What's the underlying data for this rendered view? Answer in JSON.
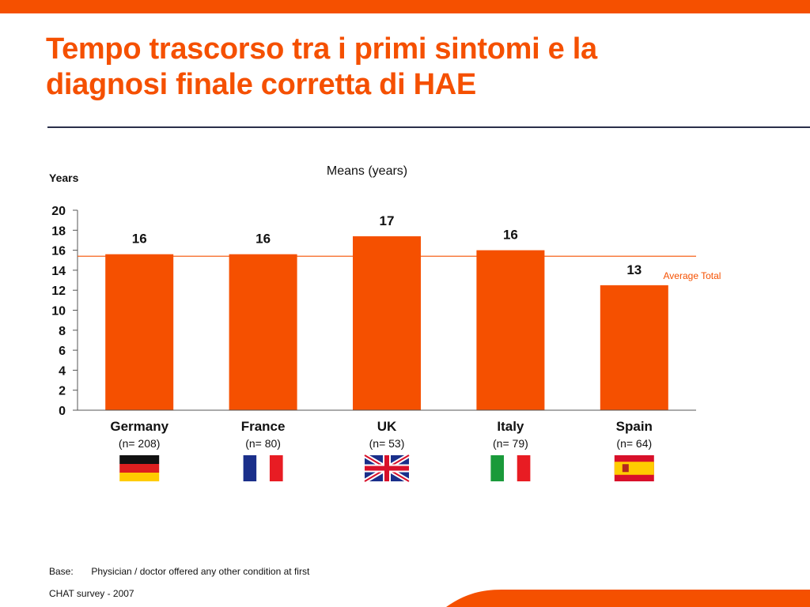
{
  "title_lines": [
    "Tempo trascorso tra i primi sintomi e la",
    "diagnosi finale corretta di HAE"
  ],
  "colors": {
    "accent": "#f55000",
    "divider": "#2a2f4a",
    "text": "#111111"
  },
  "chart_data": {
    "type": "bar",
    "title": "Means (years)",
    "ylabel": "Years",
    "categories": [
      "Germany",
      "France",
      "UK",
      "Italy",
      "Spain"
    ],
    "sample_sizes": [
      "(n= 208)",
      "(n= 80)",
      "(n= 53)",
      "(n= 79)",
      "(n= 64)"
    ],
    "values": [
      15.6,
      15.6,
      17.4,
      16.0,
      12.5
    ],
    "data_labels": [
      "16",
      "16",
      "17",
      "16",
      "13"
    ],
    "flags": [
      "germany-flag",
      "france-flag",
      "uk-flag",
      "italy-flag",
      "spain-flag"
    ],
    "ylim": [
      0,
      20
    ],
    "yticks": [
      0,
      2,
      4,
      6,
      8,
      10,
      12,
      14,
      16,
      18,
      20
    ],
    "reference_line": {
      "label": "Average Total",
      "value": 15.4
    },
    "grid": false,
    "bar_color": "#f55000"
  },
  "footnote": {
    "label": "Base:",
    "text": "Physician / doctor offered any other condition at first"
  },
  "source": "CHAT survey  -  2007"
}
